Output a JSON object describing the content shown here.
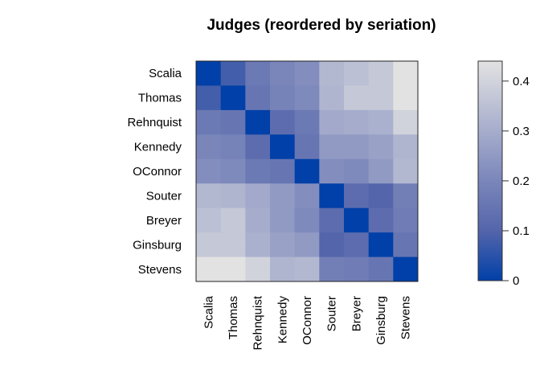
{
  "chart_data": {
    "type": "heatmap",
    "title": "Judges (reordered by seriation)",
    "rows": [
      "Scalia",
      "Thomas",
      "Rehnquist",
      "Kennedy",
      "OConnor",
      "Souter",
      "Breyer",
      "Ginsburg",
      "Stevens"
    ],
    "columns": [
      "Scalia",
      "Thomas",
      "Rehnquist",
      "Kennedy",
      "OConnor",
      "Souter",
      "Breyer",
      "Ginsburg",
      "Stevens"
    ],
    "values": [
      [
        0,
        0.08,
        0.16,
        0.2,
        0.22,
        0.33,
        0.35,
        0.37,
        0.44
      ],
      [
        0.08,
        0,
        0.15,
        0.19,
        0.21,
        0.32,
        0.37,
        0.37,
        0.44
      ],
      [
        0.16,
        0.15,
        0,
        0.12,
        0.16,
        0.29,
        0.3,
        0.31,
        0.4
      ],
      [
        0.2,
        0.19,
        0.12,
        0,
        0.15,
        0.25,
        0.25,
        0.27,
        0.32
      ],
      [
        0.22,
        0.21,
        0.16,
        0.15,
        0,
        0.22,
        0.21,
        0.25,
        0.33
      ],
      [
        0.33,
        0.32,
        0.29,
        0.25,
        0.22,
        0,
        0.12,
        0.1,
        0.18
      ],
      [
        0.35,
        0.37,
        0.3,
        0.25,
        0.21,
        0.12,
        0,
        0.12,
        0.17
      ],
      [
        0.37,
        0.37,
        0.31,
        0.27,
        0.25,
        0.1,
        0.12,
        0,
        0.15
      ],
      [
        0.44,
        0.44,
        0.4,
        0.32,
        0.33,
        0.18,
        0.17,
        0.15,
        0
      ]
    ],
    "colorbar": {
      "range": [
        0,
        0.44
      ],
      "ticks": [
        "0",
        "0.1",
        "0.2",
        "0.3",
        "0.4"
      ],
      "tick_values": [
        0,
        0.1,
        0.2,
        0.3,
        0.4
      ]
    },
    "colors": {
      "low": "#0040A8",
      "high": "#E2E2E2"
    }
  }
}
